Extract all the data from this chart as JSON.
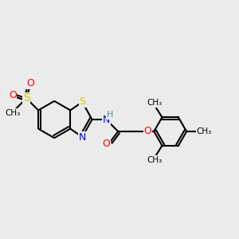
{
  "background_color": "#ebebeb",
  "bond_color": "#000000",
  "bond_width": 1.5,
  "atom_colors": {
    "S_thiazole": "#cccc00",
    "S_sulfonyl": "#cccc00",
    "N": "#0000ff",
    "O_carbonyl": "#ff0000",
    "O_ether": "#ff0000",
    "O_sulf1": "#ff0000",
    "O_sulf2": "#ff0000",
    "H": "#4a9090",
    "C": "#000000"
  },
  "font_size_atom": 8,
  "font_size_methyl": 7.5,
  "xlim": [
    0,
    11
  ],
  "ylim": [
    1,
    9
  ]
}
